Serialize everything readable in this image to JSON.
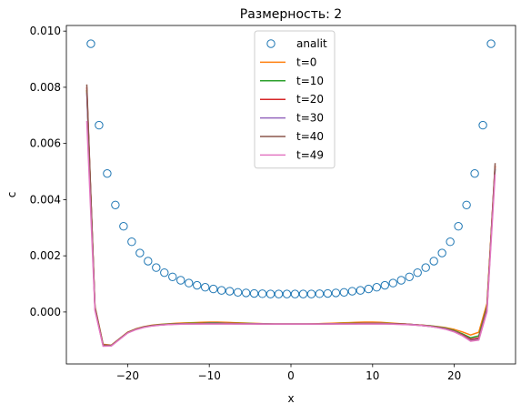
{
  "chart_data": {
    "type": "line",
    "title": "Размерность: 2",
    "xlabel": "x",
    "ylabel": "c",
    "xlim": [
      -27.5,
      27.5
    ],
    "ylim": [
      -0.00185,
      0.0102
    ],
    "x_ticks": [
      -20,
      -10,
      0,
      10,
      20
    ],
    "x_tick_labels": [
      "−20",
      "−10",
      "0",
      "10",
      "20"
    ],
    "y_ticks": [
      0.0,
      0.002,
      0.004,
      0.006,
      0.008,
      0.01
    ],
    "y_tick_labels": [
      "0.000",
      "0.002",
      "0.004",
      "0.006",
      "0.008",
      "0.010"
    ],
    "grid": false,
    "legend_position": "top-center",
    "marker_series": {
      "name": "analit",
      "color": "#1f77b4",
      "marker": "open-circle",
      "x": [
        -24.5,
        -23.5,
        -22.5,
        -21.5,
        -20.5,
        -19.5,
        -18.5,
        -17.5,
        -16.5,
        -15.5,
        -14.5,
        -13.5,
        -12.5,
        -11.5,
        -10.5,
        -9.5,
        -8.5,
        -7.5,
        -6.5,
        -5.5,
        -4.5,
        -3.5,
        -2.5,
        -1.5,
        -0.5,
        0.5,
        1.5,
        2.5,
        3.5,
        4.5,
        5.5,
        6.5,
        7.5,
        8.5,
        9.5,
        10.5,
        11.5,
        12.5,
        13.5,
        14.5,
        15.5,
        16.5,
        17.5,
        18.5,
        19.5,
        20.5,
        21.5,
        22.5,
        23.5,
        24.5
      ],
      "y": [
        0.00955,
        0.00665,
        0.00493,
        0.00381,
        0.00305,
        0.0025,
        0.0021,
        0.00181,
        0.00158,
        0.0014,
        0.00125,
        0.00113,
        0.00103,
        0.00095,
        0.00088,
        0.00082,
        0.00077,
        0.00074,
        0.0007,
        0.00068,
        0.00066,
        0.00065,
        0.00064,
        0.00064,
        0.00064,
        0.00064,
        0.00064,
        0.00064,
        0.00065,
        0.00066,
        0.00068,
        0.0007,
        0.00074,
        0.00077,
        0.00082,
        0.00088,
        0.00095,
        0.00103,
        0.00113,
        0.00125,
        0.0014,
        0.00158,
        0.00181,
        0.0021,
        0.0025,
        0.00305,
        0.00381,
        0.00493,
        0.00665,
        0.00955
      ]
    },
    "x": [
      -25,
      -24,
      -23,
      -22,
      -21,
      -20,
      -19,
      -18,
      -17,
      -16,
      -15,
      -14,
      -13,
      -12,
      -11,
      -10,
      -9,
      -8,
      -7,
      -6,
      -5,
      -4,
      -3,
      -2,
      -1,
      0,
      1,
      2,
      3,
      4,
      5,
      6,
      7,
      8,
      9,
      10,
      11,
      12,
      13,
      14,
      15,
      16,
      17,
      18,
      19,
      20,
      21,
      22,
      23,
      24,
      25
    ],
    "series": [
      {
        "name": "t=0",
        "color": "#ff7f0e",
        "values": [
          0.0079,
          0.0002,
          -0.00115,
          -0.00118,
          -0.00095,
          -0.00072,
          -0.0006,
          -0.00052,
          -0.00047,
          -0.00044,
          -0.00042,
          -0.0004,
          -0.00039,
          -0.00038,
          -0.00037,
          -0.00036,
          -0.00036,
          -0.00037,
          -0.00038,
          -0.00039,
          -0.0004,
          -0.00041,
          -0.00042,
          -0.00043,
          -0.00043,
          -0.00043,
          -0.00043,
          -0.00043,
          -0.00042,
          -0.00041,
          -0.0004,
          -0.00039,
          -0.00038,
          -0.00037,
          -0.00036,
          -0.00036,
          -0.00037,
          -0.00039,
          -0.00041,
          -0.00043,
          -0.00045,
          -0.00047,
          -0.00049,
          -0.00052,
          -0.00056,
          -0.00062,
          -0.00071,
          -0.00082,
          -0.00072,
          0.0003,
          0.0052
        ]
      },
      {
        "name": "t=10",
        "color": "#2ca02c",
        "values": [
          0.0079,
          0.00015,
          -0.00118,
          -0.00119,
          -0.00096,
          -0.00073,
          -0.00061,
          -0.00053,
          -0.00048,
          -0.00045,
          -0.00043,
          -0.00042,
          -0.00041,
          -0.0004,
          -0.0004,
          -0.00039,
          -0.00039,
          -0.0004,
          -0.0004,
          -0.00041,
          -0.00041,
          -0.00042,
          -0.00042,
          -0.00043,
          -0.00043,
          -0.00043,
          -0.00043,
          -0.00043,
          -0.00043,
          -0.00042,
          -0.00042,
          -0.00041,
          -0.00041,
          -0.0004,
          -0.0004,
          -0.0004,
          -0.0004,
          -0.00041,
          -0.00042,
          -0.00043,
          -0.00045,
          -0.00047,
          -0.00049,
          -0.00053,
          -0.00058,
          -0.00066,
          -0.00078,
          -0.00092,
          -0.00085,
          0.0002,
          0.0051
        ]
      },
      {
        "name": "t=20",
        "color": "#d62728",
        "values": [
          0.008,
          0.0001,
          -0.0012,
          -0.0012,
          -0.00097,
          -0.00074,
          -0.00062,
          -0.00054,
          -0.00049,
          -0.00046,
          -0.00044,
          -0.00043,
          -0.00042,
          -0.00042,
          -0.00041,
          -0.00041,
          -0.00041,
          -0.00041,
          -0.00041,
          -0.00042,
          -0.00042,
          -0.00042,
          -0.00043,
          -0.00043,
          -0.00043,
          -0.00043,
          -0.00043,
          -0.00043,
          -0.00043,
          -0.00043,
          -0.00042,
          -0.00042,
          -0.00042,
          -0.00041,
          -0.00041,
          -0.00041,
          -0.00041,
          -0.00042,
          -0.00042,
          -0.00043,
          -0.00045,
          -0.00047,
          -0.0005,
          -0.00054,
          -0.0006,
          -0.00068,
          -0.00081,
          -0.00097,
          -0.00092,
          0.00015,
          0.0052
        ]
      },
      {
        "name": "t=30",
        "color": "#9467bd",
        "values": [
          0.0078,
          0.00012,
          -0.00119,
          -0.0012,
          -0.00096,
          -0.00074,
          -0.00062,
          -0.00054,
          -0.00049,
          -0.00046,
          -0.00044,
          -0.00043,
          -0.00042,
          -0.00042,
          -0.00042,
          -0.00041,
          -0.00041,
          -0.00041,
          -0.00042,
          -0.00042,
          -0.00042,
          -0.00042,
          -0.00043,
          -0.00043,
          -0.00043,
          -0.00043,
          -0.00043,
          -0.00043,
          -0.00043,
          -0.00043,
          -0.00042,
          -0.00042,
          -0.00042,
          -0.00042,
          -0.00041,
          -0.00041,
          -0.00041,
          -0.00042,
          -0.00043,
          -0.00044,
          -0.00045,
          -0.00048,
          -0.00051,
          -0.00055,
          -0.0006,
          -0.00069,
          -0.00083,
          -0.001,
          -0.00096,
          0.0001,
          0.0051
        ]
      },
      {
        "name": "t=40",
        "color": "#8c564b",
        "values": [
          0.0081,
          0.00018,
          -0.00117,
          -0.00119,
          -0.00096,
          -0.00073,
          -0.00061,
          -0.00053,
          -0.00048,
          -0.00046,
          -0.00044,
          -0.00043,
          -0.00042,
          -0.00042,
          -0.00042,
          -0.00042,
          -0.00042,
          -0.00042,
          -0.00042,
          -0.00042,
          -0.00042,
          -0.00043,
          -0.00043,
          -0.00043,
          -0.00043,
          -0.00043,
          -0.00043,
          -0.00043,
          -0.00043,
          -0.00043,
          -0.00043,
          -0.00042,
          -0.00042,
          -0.00042,
          -0.00042,
          -0.00042,
          -0.00042,
          -0.00042,
          -0.00043,
          -0.00044,
          -0.00046,
          -0.00048,
          -0.00051,
          -0.00055,
          -0.00061,
          -0.0007,
          -0.00084,
          -0.00102,
          -0.00098,
          5e-05,
          0.0053
        ]
      },
      {
        "name": "t=49",
        "color": "#e377c2",
        "values": [
          0.0068,
          5e-05,
          -0.00122,
          -0.00121,
          -0.00098,
          -0.00075,
          -0.00063,
          -0.00055,
          -0.0005,
          -0.00047,
          -0.00045,
          -0.00044,
          -0.00043,
          -0.00043,
          -0.00043,
          -0.00043,
          -0.00043,
          -0.00043,
          -0.00043,
          -0.00043,
          -0.00043,
          -0.00043,
          -0.00043,
          -0.00043,
          -0.00043,
          -0.00043,
          -0.00043,
          -0.00043,
          -0.00043,
          -0.00043,
          -0.00043,
          -0.00043,
          -0.00043,
          -0.00043,
          -0.00043,
          -0.00043,
          -0.00043,
          -0.00043,
          -0.00044,
          -0.00045,
          -0.00046,
          -0.00048,
          -0.00051,
          -0.00056,
          -0.00062,
          -0.00071,
          -0.00085,
          -0.00104,
          -0.001,
          0.0,
          0.0049
        ]
      }
    ]
  }
}
